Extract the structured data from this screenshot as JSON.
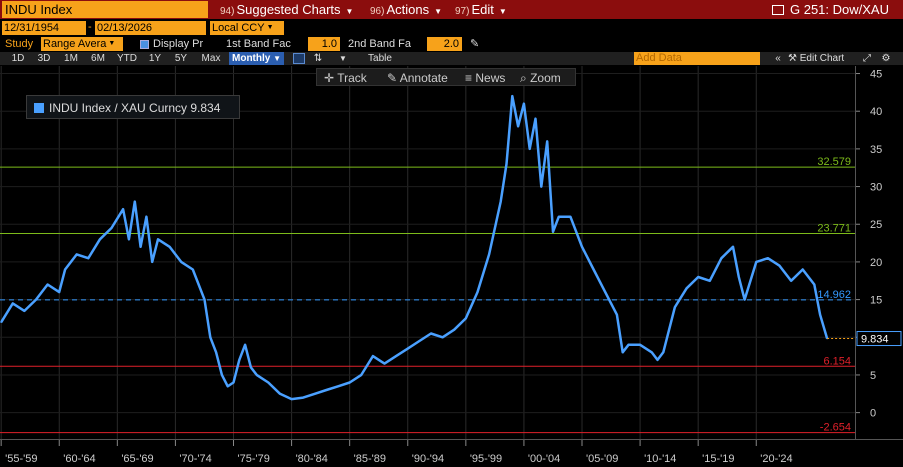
{
  "topbar": {
    "ticker": "INDU Index",
    "suggested": {
      "num": "94)",
      "label": "Suggested Charts"
    },
    "actions": {
      "num": "96)",
      "label": "Actions"
    },
    "edit": {
      "num": "97)",
      "label": "Edit"
    },
    "title": "G 251: Dow/XAU"
  },
  "controls": {
    "start_date": "12/31/1954",
    "end_date": "02/13/2026",
    "currency": "Local CCY",
    "study_label": "Study",
    "study_value": "Range Avera",
    "display_label": "Display Pr",
    "band1_label": "1st Band Fac",
    "band1_value": "1.0",
    "band2_label": "2nd Band Fa",
    "band2_value": "2.0"
  },
  "periods": [
    "1D",
    "3D",
    "1M",
    "6M",
    "YTD",
    "1Y",
    "5Y",
    "Max"
  ],
  "frequency": "Monthly",
  "table_label": "Table",
  "add_data_placeholder": "Add Data",
  "edit_chart_label": "Edit Chart",
  "overlay_tools": [
    "Track",
    "Annotate",
    "News",
    "Zoom"
  ],
  "colors": {
    "series": "#4aa0ff",
    "upper_band": "#7dbb1a",
    "average": "#3399ff",
    "lower_band": "#e0202a",
    "accent_orange": "#f7a21a",
    "topbar": "#8b0d0d"
  },
  "chart_data": {
    "type": "line",
    "legend": "INDU Index / XAU Curncy 9.834",
    "last_value": 9.834,
    "ylim": [
      -3.5,
      46
    ],
    "yticks": [
      0,
      5,
      10,
      15,
      20,
      25,
      30,
      35,
      40,
      45
    ],
    "xlim": [
      1954.9,
      2028.5
    ],
    "xtick_labels": [
      "'55-'59",
      "'60-'64",
      "'65-'69",
      "'70-'74",
      "'75-'79",
      "'80-'84",
      "'85-'89",
      "'90-'94",
      "'95-'99",
      "'00-'04",
      "'05-'09",
      "'10-'14",
      "'15-'19",
      "'20-'24"
    ],
    "xtick_starts": [
      1955,
      1960,
      1965,
      1970,
      1975,
      1980,
      1985,
      1990,
      1995,
      2000,
      2005,
      2010,
      2015,
      2020
    ],
    "bands": [
      {
        "label": "32.579",
        "value": 32.579,
        "style": "solid",
        "color_key": "upper_band"
      },
      {
        "label": "23.771",
        "value": 23.771,
        "style": "solid",
        "color_key": "upper_band"
      },
      {
        "label": "14.962",
        "value": 14.962,
        "style": "dashed",
        "color_key": "average"
      },
      {
        "label": "6.154",
        "value": 6.154,
        "style": "solid",
        "color_key": "lower_band"
      },
      {
        "label": "-2.654",
        "value": -2.654,
        "style": "solid",
        "color_key": "lower_band"
      }
    ],
    "series": [
      {
        "x": [
          1955.0,
          1956.0,
          1957.0,
          1958.0,
          1959.0,
          1960.0,
          1960.5,
          1961.5,
          1962.5,
          1963.5,
          1964.5,
          1965.5,
          1966.0,
          1966.5,
          1967.0,
          1967.5,
          1968.0,
          1968.5,
          1969.5,
          1970.5,
          1971.5,
          1972.5,
          1973.0,
          1973.5,
          1974.0,
          1974.5,
          1975.0,
          1975.5,
          1976.0,
          1976.5,
          1977.0,
          1978.0,
          1979.0,
          1980.0,
          1981.0,
          1982.0,
          1983.0,
          1984.0,
          1985.0,
          1986.0,
          1987.0,
          1988.0,
          1989.0,
          1990.0,
          1991.0,
          1992.0,
          1993.0,
          1994.0,
          1995.0,
          1996.0,
          1997.0,
          1998.0,
          1998.5,
          1999.0,
          1999.5,
          2000.0,
          2000.5,
          2001.0,
          2001.5,
          2002.0,
          2002.5,
          2003.0,
          2004.0,
          2005.0,
          2006.0,
          2007.0,
          2008.0,
          2008.5,
          2009.0,
          2010.0,
          2011.0,
          2011.5,
          2012.0,
          2013.0,
          2014.0,
          2015.0,
          2016.0,
          2017.0,
          2018.0,
          2018.5,
          2019.0,
          2020.0,
          2021.0,
          2022.0,
          2023.0,
          2024.0,
          2025.0,
          2025.5,
          2026.1
        ],
        "y": [
          12.0,
          14.5,
          13.5,
          15.0,
          17.0,
          16.0,
          19.0,
          21.0,
          20.5,
          23.0,
          24.5,
          27.0,
          23.0,
          28.0,
          22.0,
          26.0,
          20.0,
          23.0,
          22.0,
          20.0,
          19.0,
          15.0,
          10.0,
          8.0,
          5.0,
          3.5,
          4.0,
          7.0,
          9.0,
          6.0,
          5.0,
          4.0,
          2.5,
          1.8,
          2.0,
          2.5,
          3.0,
          3.5,
          4.0,
          5.0,
          7.5,
          6.5,
          7.5,
          8.5,
          9.5,
          10.5,
          10.0,
          11.0,
          12.5,
          16.0,
          21.0,
          28.0,
          33.0,
          42.0,
          38.0,
          41.0,
          35.0,
          39.0,
          30.0,
          36.0,
          24.0,
          26.0,
          26.0,
          22.0,
          19.0,
          16.0,
          13.0,
          8.0,
          9.0,
          9.0,
          8.0,
          7.0,
          8.0,
          14.0,
          16.5,
          18.0,
          17.5,
          20.5,
          22.0,
          18.0,
          15.0,
          20.0,
          20.5,
          19.5,
          17.5,
          19.0,
          17.0,
          13.0,
          9.834
        ]
      }
    ]
  }
}
